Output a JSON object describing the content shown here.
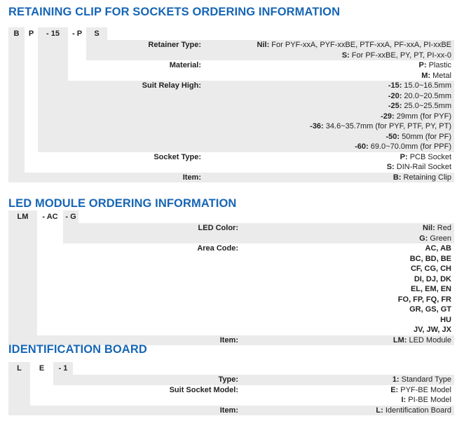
{
  "colors": {
    "title": "#1766b5",
    "shade": "#ebebeb",
    "text": "#231f20"
  },
  "sections": [
    {
      "title": "RETAINING CLIP FOR SOCKETS ORDERING INFORMATION",
      "codes": [
        {
          "text": "B",
          "shaded": true
        },
        {
          "text": "P",
          "shaded": false
        },
        {
          "text": "- 15",
          "shaded": true
        },
        {
          "text": "- P",
          "shaded": false
        },
        {
          "text": "S",
          "shaded": true
        }
      ],
      "rows": [
        {
          "label": "Retainer Type:",
          "code": 4,
          "values": [
            {
              "key": "Nil:",
              "text": " For PYF-xxA, PYF-xxBE, PTF-xxA, PF-xxA, PI-xxBE"
            },
            {
              "key": "S:",
              "text": " For PF-xxBE, PY, PT, PI-xx-0"
            }
          ]
        },
        {
          "label": "Material:",
          "code": 3,
          "values": [
            {
              "key": "P:",
              "text": " Plastic"
            },
            {
              "key": "M:",
              "text": " Metal"
            }
          ]
        },
        {
          "label": "Suit Relay High:",
          "code": 2,
          "values": [
            {
              "key": "-15:",
              "text": " 15.0~16.5mm"
            },
            {
              "key": "-20:",
              "text": " 20.0~20.5mm"
            },
            {
              "key": "-25:",
              "text": " 25.0~25.5mm"
            },
            {
              "key": "-29:",
              "text": " 29mm (for PYF)"
            },
            {
              "key": "-36:",
              "text": " 34.6~35.7mm (for PYF, PTF, PY, PT)"
            },
            {
              "key": "-50:",
              "text": " 50mm (for PF)"
            },
            {
              "key": "-60:",
              "text": " 69.0~70.0mm (for PPF)"
            }
          ]
        },
        {
          "label": "Socket Type:",
          "code": 1,
          "values": [
            {
              "key": "P:",
              "text": " PCB Socket"
            },
            {
              "key": "S:",
              "text": " DIN-Rail Socket"
            }
          ]
        },
        {
          "label": "Item:",
          "code": 0,
          "values": [
            {
              "key": "B:",
              "text": " Retaining Clip"
            }
          ]
        }
      ]
    },
    {
      "title": "LED MODULE ORDERING INFORMATION",
      "codes": [
        {
          "text": "LM",
          "shaded": true
        },
        {
          "text": "- AC",
          "shaded": false
        },
        {
          "text": "- G",
          "shaded": true
        }
      ],
      "rows": [
        {
          "label": "LED Color:",
          "code": 2,
          "values": [
            {
              "key": "Nil:",
              "text": " Red"
            },
            {
              "key": "G:",
              "text": " Green"
            }
          ]
        },
        {
          "label": "Area Code:",
          "code": 1,
          "values": [
            {
              "key": "AC, AB",
              "text": ""
            },
            {
              "key": "BC, BD, BE",
              "text": ""
            },
            {
              "key": "CF, CG, CH",
              "text": ""
            },
            {
              "key": "DI, DJ, DK",
              "text": ""
            },
            {
              "key": "EL, EM, EN",
              "text": ""
            },
            {
              "key": "FO, FP, FQ, FR",
              "text": ""
            },
            {
              "key": "GR, GS, GT",
              "text": ""
            },
            {
              "key": "HU",
              "text": ""
            },
            {
              "key": "JV, JW, JX",
              "text": ""
            }
          ]
        },
        {
          "label": "Item:",
          "code": 0,
          "values": [
            {
              "key": "LM:",
              "text": " LED Module"
            }
          ]
        }
      ]
    },
    {
      "title": "IDENTIFICATION BOARD",
      "codes": [
        {
          "text": "L",
          "shaded": true
        },
        {
          "text": "E",
          "shaded": false
        },
        {
          "text": "- 1",
          "shaded": true
        }
      ],
      "rows": [
        {
          "label": "Type:",
          "code": 2,
          "values": [
            {
              "key": "1:",
              "text": " Standard Type"
            }
          ]
        },
        {
          "label": "Suit Socket Model:",
          "code": 1,
          "values": [
            {
              "key": "E:",
              "text": " PYF-BE Model"
            },
            {
              "key": "I:",
              "text": " PI-BE Model"
            }
          ]
        },
        {
          "label": "Item:",
          "code": 0,
          "values": [
            {
              "key": "L:",
              "text": " Identification Board"
            }
          ]
        }
      ]
    }
  ]
}
